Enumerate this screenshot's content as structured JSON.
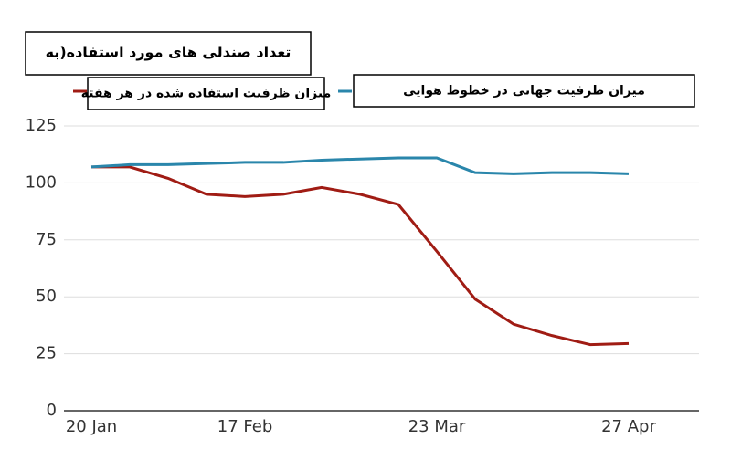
{
  "chart_data": {
    "type": "line",
    "title": "تعداد صندلی های مورد استفاده(به",
    "categories": [
      "20 Jan",
      null,
      null,
      null,
      "17 Feb",
      null,
      null,
      null,
      null,
      "23 Mar",
      null,
      null,
      null,
      null,
      "27 Apr"
    ],
    "series": [
      {
        "name": "میزان ظرفیت استفاده شده در هر هفته",
        "color": "#a01c14",
        "values": [
          107,
          107,
          102,
          95,
          94,
          95,
          98,
          95,
          90.5,
          70,
          49,
          38,
          33,
          29,
          29.5
        ]
      },
      {
        "name": "میزان ظرفیت جهانی در خطوط هوایی",
        "color": "#2a86ab",
        "values": [
          107,
          108,
          108,
          108.5,
          109,
          109,
          110,
          110.5,
          111,
          111,
          104.5,
          104,
          104.5,
          104.5,
          104
        ]
      }
    ],
    "ylim": [
      0,
      125
    ],
    "yticks": [
      0,
      25,
      50,
      75,
      100,
      125
    ],
    "grid": true
  }
}
